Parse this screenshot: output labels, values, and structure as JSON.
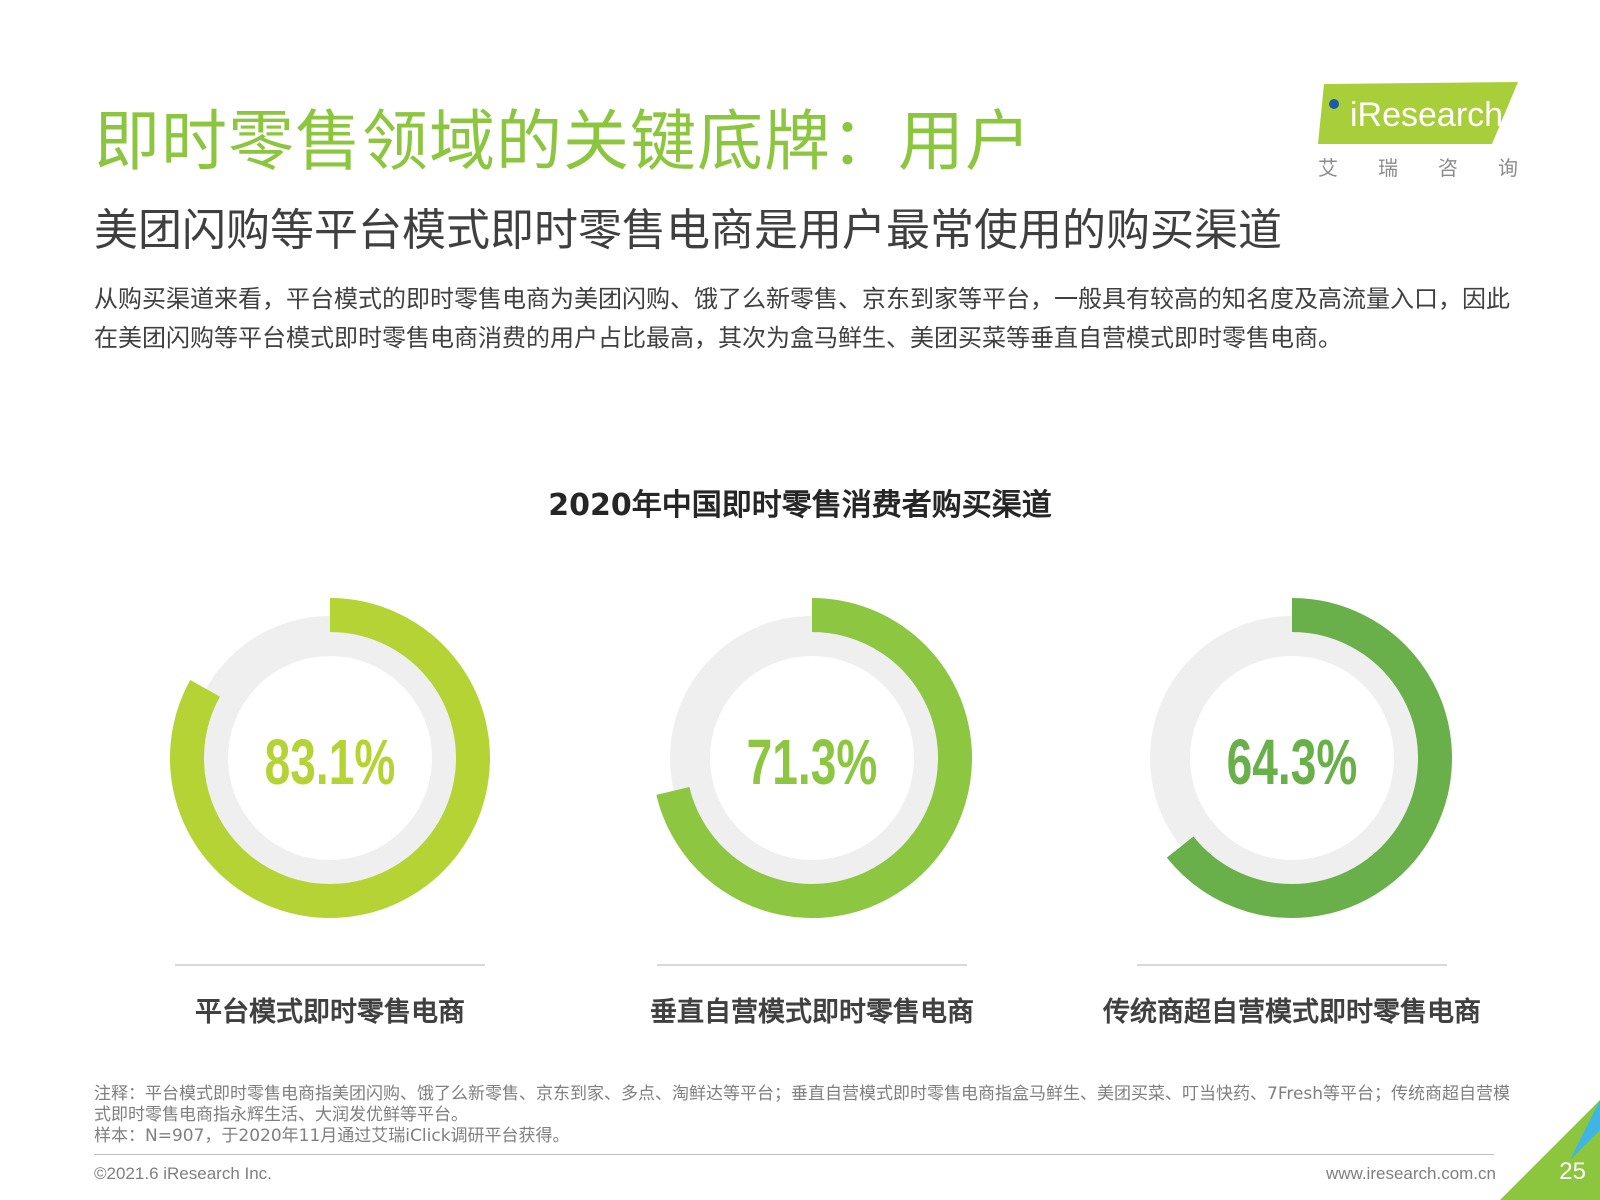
{
  "header": {
    "title": "即时零售领域的关键底牌：用户",
    "subtitle": "美团闪购等平台模式即时零售电商是用户最常使用的购买渠道",
    "description": "从购买渠道来看，平台模式的即时零售电商为美团闪购、饿了么新零售、京东到家等平台，一般具有较高的知名度及高流量入口，因此在美团闪购等平台模式即时零售电商消费的用户占比最高，其次为盒马鲜生、美团买菜等垂直自营模式即时零售电商。"
  },
  "logo": {
    "text": "iResearch",
    "cn_chars": [
      "艾",
      "瑞",
      "咨",
      "询"
    ]
  },
  "chart_data": {
    "type": "donut",
    "title": "2020年中国即时零售消费者购买渠道",
    "unit": "%",
    "categories": [
      "平台模式即时零售电商",
      "垂直自营模式即时零售电商",
      "传统商超自营模式即时零售电商"
    ],
    "values": [
      83.1,
      71.3,
      64.3
    ],
    "value_labels": [
      "83.1%",
      "71.3%",
      "64.3%"
    ],
    "colors": [
      "#b5d334",
      "#8dc641",
      "#6ab04a"
    ],
    "track_color": "#efefef"
  },
  "notes": {
    "note": "注释：平台模式即时零售电商指美团闪购、饿了么新零售、京东到家、多点、淘鲜达等平台；垂直自营模式即时零售电商指盒马鲜生、美团买菜、叮当快药、7Fresh等平台；传统商超自营模式即时零售电商指永辉生活、大润发优鲜等平台。",
    "sample": "样本：N=907，于2020年11月通过艾瑞iClick调研平台获得。"
  },
  "footer": {
    "copyright": "©2021.6 iResearch Inc.",
    "website": "www.iresearch.com.cn",
    "page_number": "25"
  }
}
